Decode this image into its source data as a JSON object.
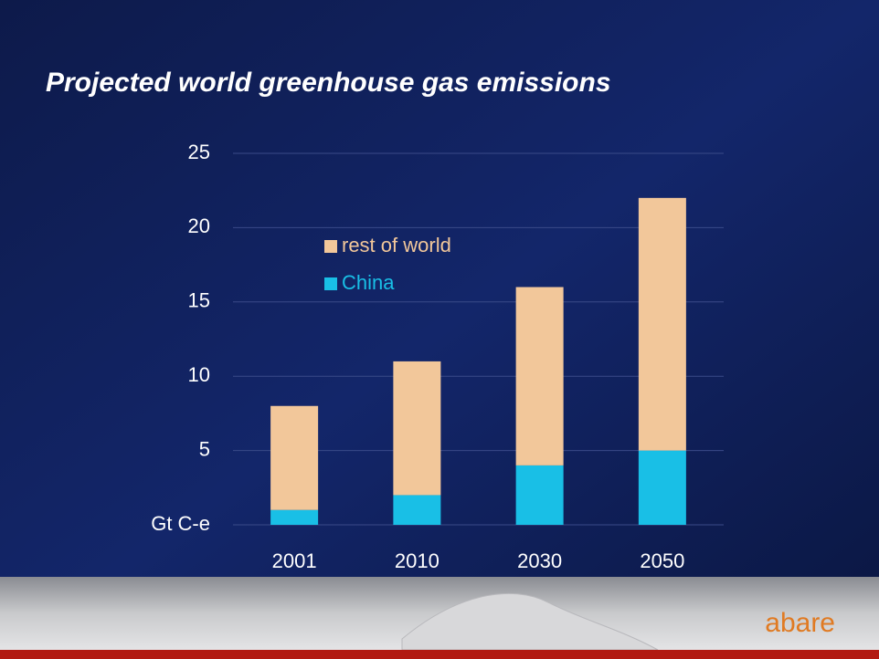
{
  "chart_data": {
    "type": "bar",
    "stacked": true,
    "title": "Projected world greenhouse gas emissions",
    "categories": [
      "2001",
      "2010",
      "2030",
      "2050"
    ],
    "series": [
      {
        "name": "China",
        "color": "#19bfe6",
        "values": [
          1,
          2,
          4,
          5
        ]
      },
      {
        "name": "rest of world",
        "color": "#f2c79a",
        "values": [
          7,
          9,
          12,
          17
        ]
      }
    ],
    "ylim": [
      0,
      25
    ],
    "yticks": [
      {
        "value": 0,
        "label": "Gt C-e"
      },
      5,
      10,
      15,
      20,
      25
    ],
    "grid": true
  },
  "logo": "abare"
}
